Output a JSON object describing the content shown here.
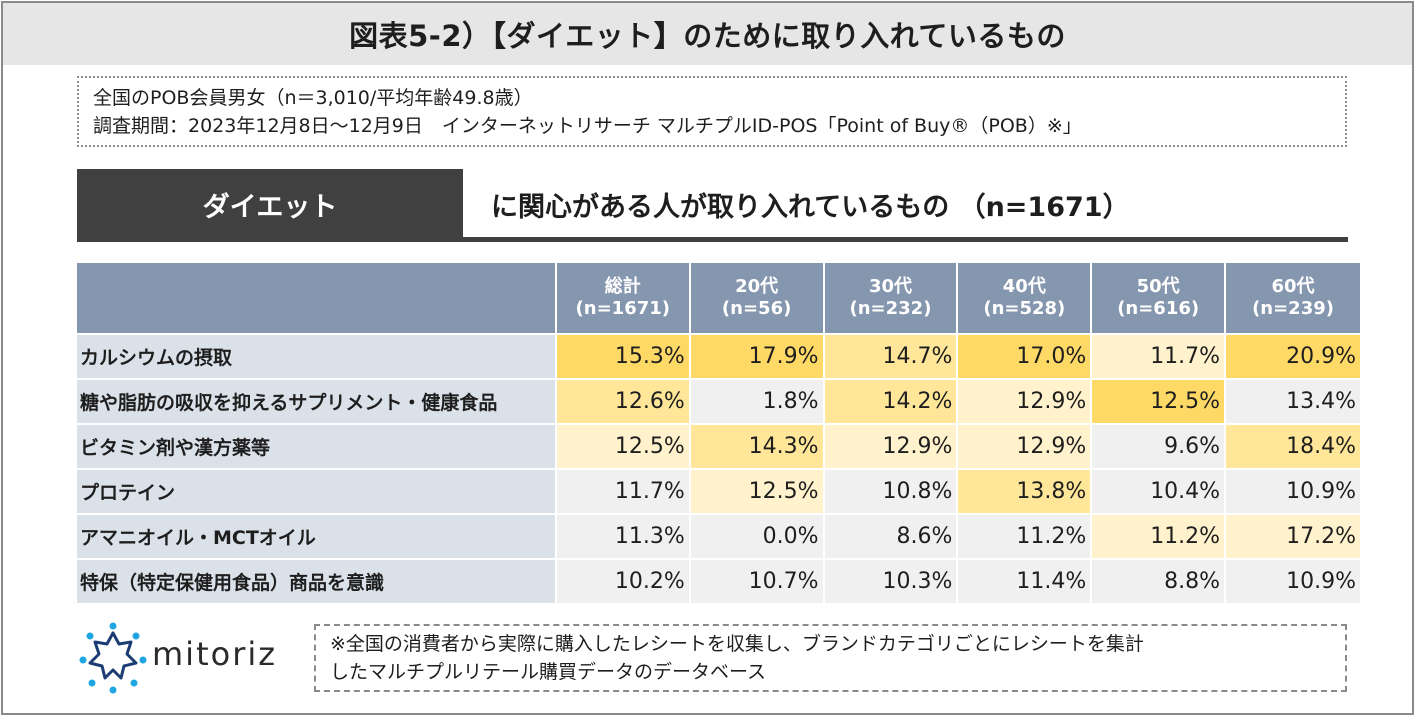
{
  "title": "図表5-2）【ダイエット】のために取り入れているもの",
  "survey": {
    "line1": "全国のPOB会員男女（n＝3,010/平均年齢49.8歳）",
    "line2": "調査期間：2023年12月8日～12月9日　インターネットリサーチ マルチプルID-POS「Point of Buy®（POB）※」"
  },
  "heading": {
    "tag": "ダイエット",
    "rest": "に関心がある人が取り入れているもの （n=1671）"
  },
  "table": {
    "columns": [
      {
        "label": "総計",
        "n": "(n=1671)"
      },
      {
        "label": "20代",
        "n": "(n=56)"
      },
      {
        "label": "30代",
        "n": "(n=232)"
      },
      {
        "label": "40代",
        "n": "(n=528)"
      },
      {
        "label": "50代",
        "n": "(n=616)"
      },
      {
        "label": "60代",
        "n": "(n=239)"
      }
    ],
    "rows": [
      {
        "label": "カルシウムの摂取",
        "values": [
          "15.3%",
          "17.9%",
          "14.7%",
          "17.0%",
          "11.7%",
          "20.9%"
        ]
      },
      {
        "label": "糖や脂肪の吸収を抑えるサプリメント・健康食品",
        "values": [
          "12.6%",
          "1.8%",
          "14.2%",
          "12.9%",
          "12.5%",
          "13.4%"
        ]
      },
      {
        "label": "ビタミン剤や漢方薬等",
        "values": [
          "12.5%",
          "14.3%",
          "12.9%",
          "12.9%",
          "9.6%",
          "18.4%"
        ]
      },
      {
        "label": "プロテイン",
        "values": [
          "11.7%",
          "12.5%",
          "10.8%",
          "13.8%",
          "10.4%",
          "10.9%"
        ]
      },
      {
        "label": "アマニオイル・MCTオイル",
        "values": [
          "11.3%",
          "0.0%",
          "8.6%",
          "11.2%",
          "11.2%",
          "17.2%"
        ]
      },
      {
        "label": "特保（特定保健用食品）商品を意識",
        "values": [
          "10.2%",
          "10.7%",
          "10.3%",
          "11.4%",
          "8.8%",
          "10.9%"
        ]
      }
    ]
  },
  "logo": {
    "wordmark": "mitoriz"
  },
  "note": {
    "line1": "※全国の消費者から実際に購入したレシートを収集し、ブランドカテゴリごとにレシートを集計",
    "line2": "したマルチプルリテール購買データのデータベース"
  },
  "colors": {
    "header_bg": "#8597ae",
    "label_bg": "#dbe1e9",
    "highlight_strong": "#ffd966",
    "highlight_medium": "#ffe699",
    "highlight_light": "#fff2cc",
    "neutral_cell": "#f0f0f0",
    "tag_bg": "#404040",
    "logo_blue": "#1fa6e0",
    "logo_navy": "#1c3d73"
  }
}
